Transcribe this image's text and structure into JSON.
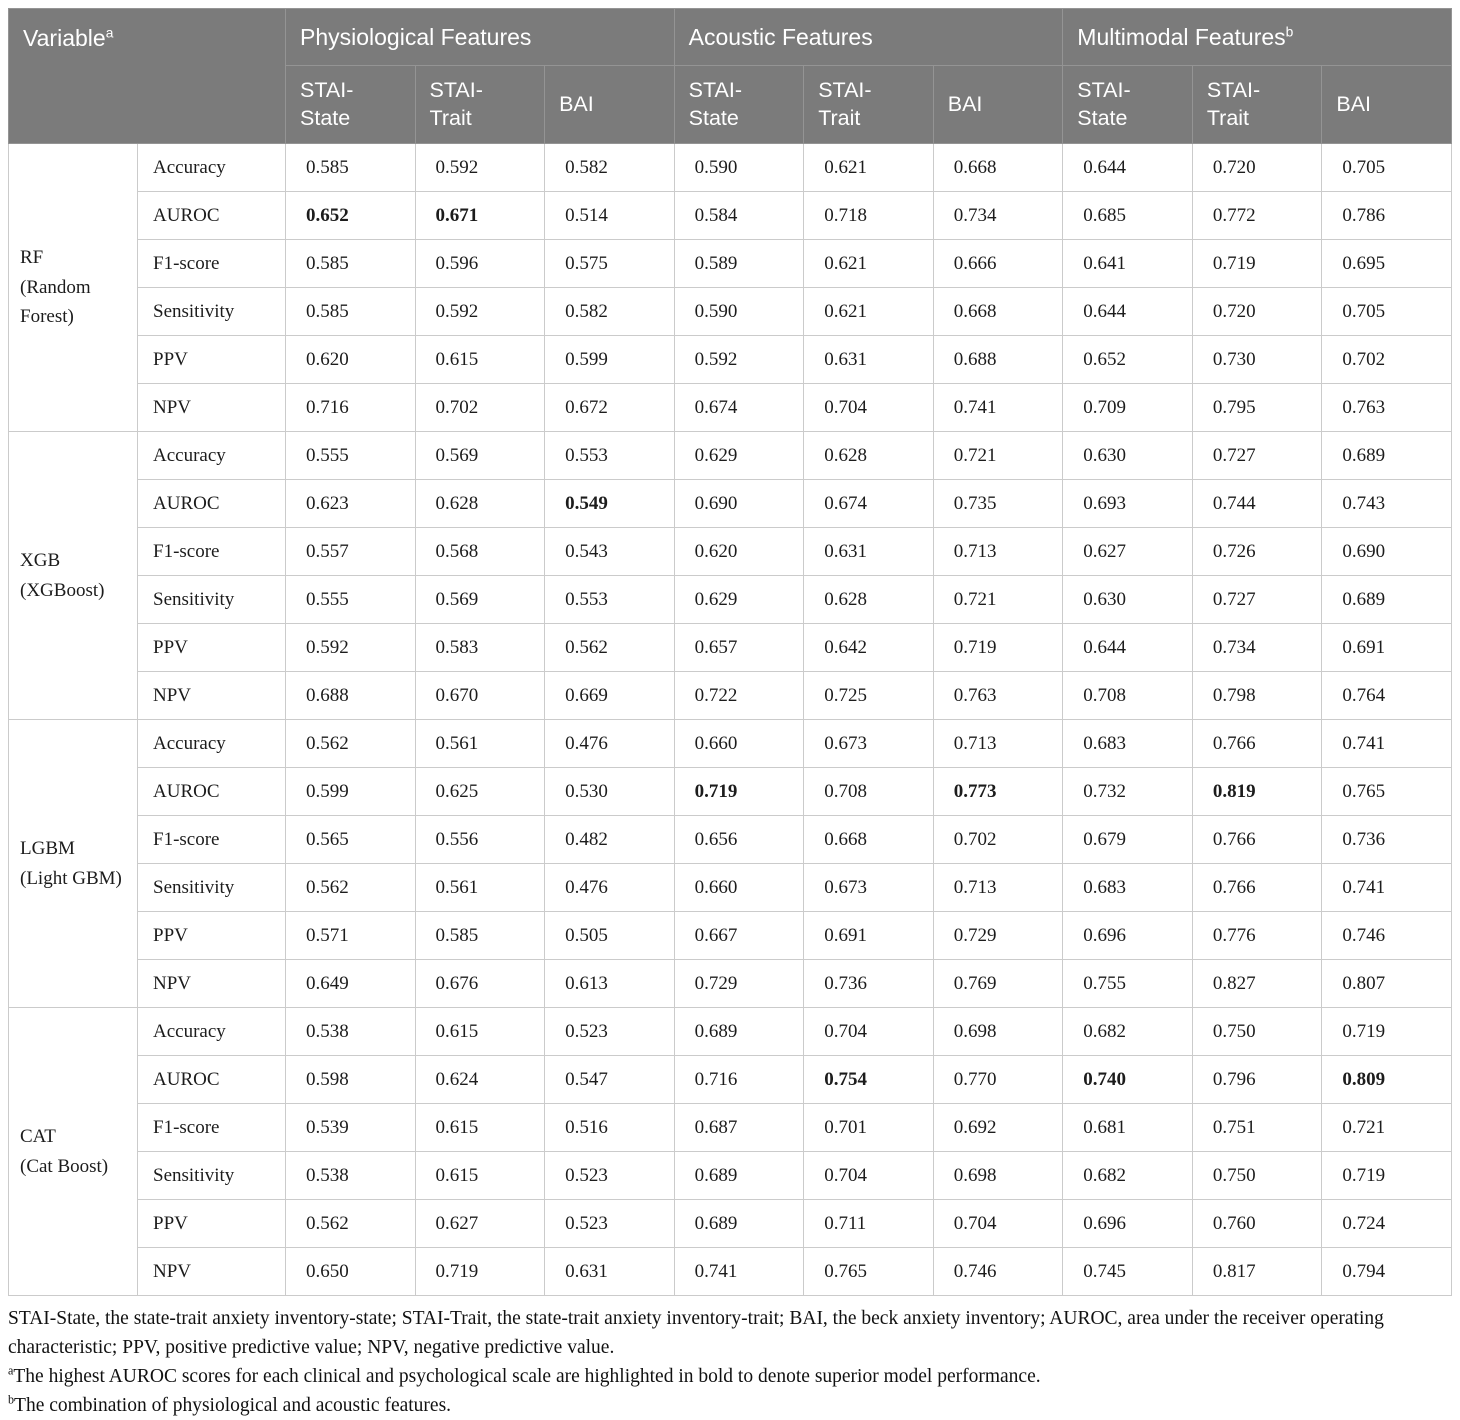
{
  "table": {
    "header": {
      "variable_label": "Variable",
      "variable_sup": "a",
      "groups": [
        {
          "label": "Physiological Features",
          "sup": ""
        },
        {
          "label": "Acoustic Features",
          "sup": ""
        },
        {
          "label": "Multimodal Features",
          "sup": "b"
        }
      ],
      "subcolumns": [
        "STAI-State",
        "STAI-Trait",
        "BAI",
        "STAI-State",
        "STAI-Trait",
        "BAI",
        "STAI-State",
        "STAI-Trait",
        "BAI"
      ]
    },
    "sections": [
      {
        "model": "RF",
        "model_detail": "(Random Forest)",
        "rows": [
          {
            "metric": "Accuracy",
            "values": [
              "0.585",
              "0.592",
              "0.582",
              "0.590",
              "0.621",
              "0.668",
              "0.644",
              "0.720",
              "0.705"
            ],
            "bold": []
          },
          {
            "metric": "AUROC",
            "values": [
              "0.652",
              "0.671",
              "0.514",
              "0.584",
              "0.718",
              "0.734",
              "0.685",
              "0.772",
              "0.786"
            ],
            "bold": [
              0,
              1
            ]
          },
          {
            "metric": "F1-score",
            "values": [
              "0.585",
              "0.596",
              "0.575",
              "0.589",
              "0.621",
              "0.666",
              "0.641",
              "0.719",
              "0.695"
            ],
            "bold": []
          },
          {
            "metric": "Sensitivity",
            "values": [
              "0.585",
              "0.592",
              "0.582",
              "0.590",
              "0.621",
              "0.668",
              "0.644",
              "0.720",
              "0.705"
            ],
            "bold": []
          },
          {
            "metric": "PPV",
            "values": [
              "0.620",
              "0.615",
              "0.599",
              "0.592",
              "0.631",
              "0.688",
              "0.652",
              "0.730",
              "0.702"
            ],
            "bold": []
          },
          {
            "metric": "NPV",
            "values": [
              "0.716",
              "0.702",
              "0.672",
              "0.674",
              "0.704",
              "0.741",
              "0.709",
              "0.795",
              "0.763"
            ],
            "bold": []
          }
        ]
      },
      {
        "model": "XGB",
        "model_detail": "(XGBoost)",
        "rows": [
          {
            "metric": "Accuracy",
            "values": [
              "0.555",
              "0.569",
              "0.553",
              "0.629",
              "0.628",
              "0.721",
              "0.630",
              "0.727",
              "0.689"
            ],
            "bold": []
          },
          {
            "metric": "AUROC",
            "values": [
              "0.623",
              "0.628",
              "0.549",
              "0.690",
              "0.674",
              "0.735",
              "0.693",
              "0.744",
              "0.743"
            ],
            "bold": [
              2
            ]
          },
          {
            "metric": "F1-score",
            "values": [
              "0.557",
              "0.568",
              "0.543",
              "0.620",
              "0.631",
              "0.713",
              "0.627",
              "0.726",
              "0.690"
            ],
            "bold": []
          },
          {
            "metric": "Sensitivity",
            "values": [
              "0.555",
              "0.569",
              "0.553",
              "0.629",
              "0.628",
              "0.721",
              "0.630",
              "0.727",
              "0.689"
            ],
            "bold": []
          },
          {
            "metric": "PPV",
            "values": [
              "0.592",
              "0.583",
              "0.562",
              "0.657",
              "0.642",
              "0.719",
              "0.644",
              "0.734",
              "0.691"
            ],
            "bold": []
          },
          {
            "metric": "NPV",
            "values": [
              "0.688",
              "0.670",
              "0.669",
              "0.722",
              "0.725",
              "0.763",
              "0.708",
              "0.798",
              "0.764"
            ],
            "bold": []
          }
        ]
      },
      {
        "model": "LGBM",
        "model_detail": "(Light GBM)",
        "rows": [
          {
            "metric": "Accuracy",
            "values": [
              "0.562",
              "0.561",
              "0.476",
              "0.660",
              "0.673",
              "0.713",
              "0.683",
              "0.766",
              "0.741"
            ],
            "bold": []
          },
          {
            "metric": "AUROC",
            "values": [
              "0.599",
              "0.625",
              "0.530",
              "0.719",
              "0.708",
              "0.773",
              "0.732",
              "0.819",
              "0.765"
            ],
            "bold": [
              3,
              5,
              7
            ]
          },
          {
            "metric": "F1-score",
            "values": [
              "0.565",
              "0.556",
              "0.482",
              "0.656",
              "0.668",
              "0.702",
              "0.679",
              "0.766",
              "0.736"
            ],
            "bold": []
          },
          {
            "metric": "Sensitivity",
            "values": [
              "0.562",
              "0.561",
              "0.476",
              "0.660",
              "0.673",
              "0.713",
              "0.683",
              "0.766",
              "0.741"
            ],
            "bold": []
          },
          {
            "metric": "PPV",
            "values": [
              "0.571",
              "0.585",
              "0.505",
              "0.667",
              "0.691",
              "0.729",
              "0.696",
              "0.776",
              "0.746"
            ],
            "bold": []
          },
          {
            "metric": "NPV",
            "values": [
              "0.649",
              "0.676",
              "0.613",
              "0.729",
              "0.736",
              "0.769",
              "0.755",
              "0.827",
              "0.807"
            ],
            "bold": []
          }
        ]
      },
      {
        "model": "CAT",
        "model_detail": "(Cat Boost)",
        "rows": [
          {
            "metric": "Accuracy",
            "values": [
              "0.538",
              "0.615",
              "0.523",
              "0.689",
              "0.704",
              "0.698",
              "0.682",
              "0.750",
              "0.719"
            ],
            "bold": []
          },
          {
            "metric": "AUROC",
            "values": [
              "0.598",
              "0.624",
              "0.547",
              "0.716",
              "0.754",
              "0.770",
              "0.740",
              "0.796",
              "0.809"
            ],
            "bold": [
              4,
              6,
              8
            ]
          },
          {
            "metric": "F1-score",
            "values": [
              "0.539",
              "0.615",
              "0.516",
              "0.687",
              "0.701",
              "0.692",
              "0.681",
              "0.751",
              "0.721"
            ],
            "bold": []
          },
          {
            "metric": "Sensitivity",
            "values": [
              "0.538",
              "0.615",
              "0.523",
              "0.689",
              "0.704",
              "0.698",
              "0.682",
              "0.750",
              "0.719"
            ],
            "bold": []
          },
          {
            "metric": "PPV",
            "values": [
              "0.562",
              "0.627",
              "0.523",
              "0.689",
              "0.711",
              "0.704",
              "0.696",
              "0.760",
              "0.724"
            ],
            "bold": []
          },
          {
            "metric": "NPV",
            "values": [
              "0.650",
              "0.719",
              "0.631",
              "0.741",
              "0.765",
              "0.746",
              "0.745",
              "0.817",
              "0.794"
            ],
            "bold": []
          }
        ]
      }
    ],
    "footnotes": {
      "abbreviations": "STAI-State, the state-trait anxiety inventory-state; STAI-Trait, the state-trait anxiety inventory-trait; BAI, the beck anxiety inventory; AUROC, area under the receiver operating characteristic; PPV, positive predictive value; NPV, negative predictive value.",
      "note_a_sup": "a",
      "note_a": "The highest AUROC scores for each clinical and psychological scale are highlighted in bold to denote superior model performance.",
      "note_b_sup": "b",
      "note_b": "The combination of physiological and acoustic features."
    },
    "colors": {
      "header_bg": "#7b7b7b",
      "header_text": "#ffffff",
      "header_border": "#949494",
      "body_border": "#cbcbcb",
      "body_text": "#1c1c1c"
    }
  }
}
